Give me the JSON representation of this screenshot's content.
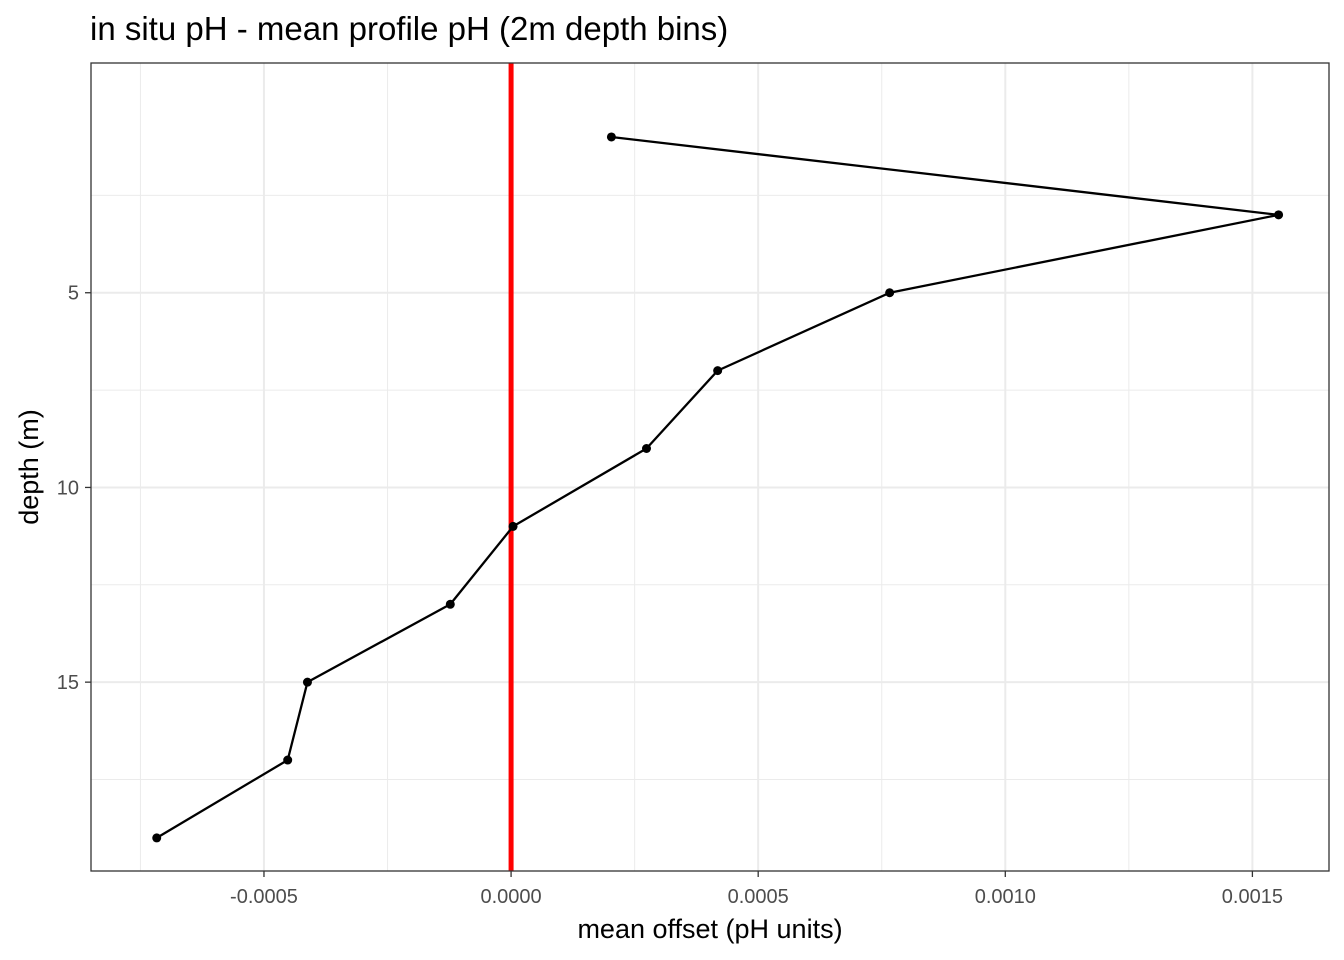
{
  "chart_data": {
    "type": "line",
    "title": "in situ pH - mean profile pH (2m depth bins)",
    "xlabel": "mean offset (pH units)",
    "ylabel": "depth (m)",
    "xlim": [
      -0.00085,
      0.001655
    ],
    "ylim": [
      19.85,
      -0.9
    ],
    "y_reversed": true,
    "x_ticks": [
      -0.0005,
      0.0,
      0.0005,
      0.001,
      0.0015
    ],
    "x_tick_labels": [
      "-0.0005",
      "0.0000",
      "0.0005",
      "0.0010",
      "0.0015"
    ],
    "y_ticks": [
      5,
      10,
      15
    ],
    "y_tick_labels": [
      "5",
      "10",
      "15"
    ],
    "grid": true,
    "reference_line": {
      "x": 0.0,
      "color": "#ff0000"
    },
    "series": [
      {
        "color": "#000000",
        "points": [
          {
            "x": 0.000203,
            "y": 1
          },
          {
            "x": 0.001553,
            "y": 3
          },
          {
            "x": 0.000766,
            "y": 5
          },
          {
            "x": 0.000418,
            "y": 7
          },
          {
            "x": 0.000274,
            "y": 9
          },
          {
            "x": 4e-06,
            "y": 11
          },
          {
            "x": -0.000123,
            "y": 13
          },
          {
            "x": -0.000412,
            "y": 15
          },
          {
            "x": -0.000452,
            "y": 17
          },
          {
            "x": -0.000717,
            "y": 19
          }
        ]
      }
    ]
  }
}
